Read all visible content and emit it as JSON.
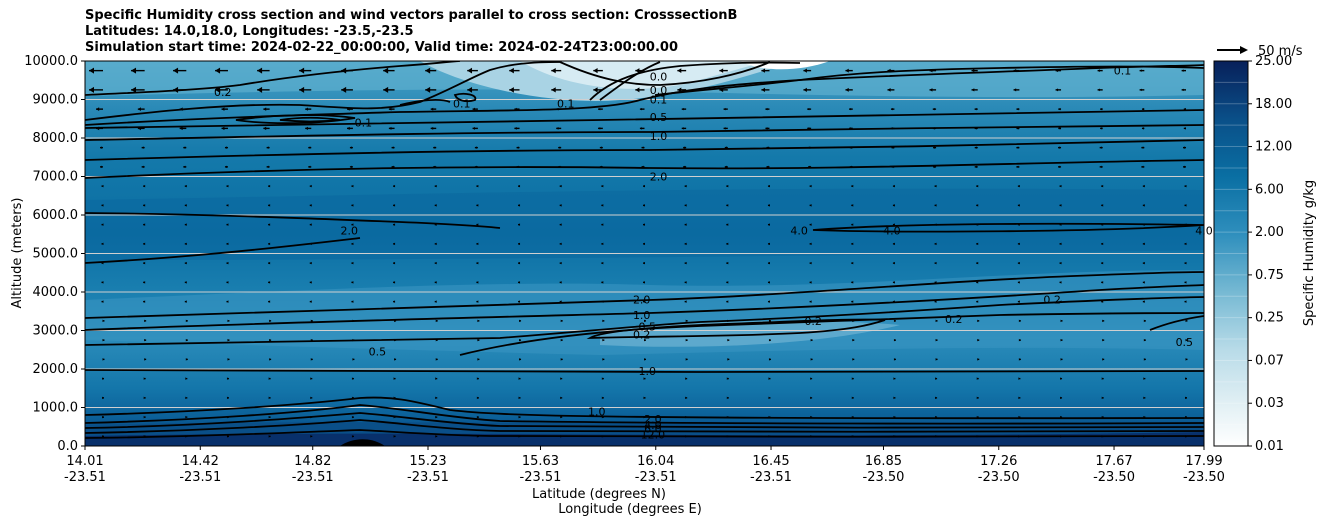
{
  "header": {
    "title_line1": "Specific Humidity cross section and wind vectors parallel to cross section: CrosssectionB",
    "title_line2": "Latitudes: 14.0,18.0, Longitudes: -23.5,-23.5",
    "title_line3": "Simulation start time: 2024-02-22_00:00:00, Valid time: 2024-02-24T23:00:00.00"
  },
  "colors": {
    "dark": "#08306b",
    "mid": "#0a6fa3",
    "light": "#3a96bd",
    "pale": "#8cc3d9",
    "white": "#ffffff",
    "contour": "#000000",
    "grid": "#d0d0d0"
  },
  "chart_data": {
    "type": "heatmap",
    "title": "Specific Humidity cross section and wind vectors parallel to cross section: CrosssectionB",
    "ylabel": "Altitude (meters)",
    "xlabel_line1": "Latitude (degrees N)",
    "xlabel_line2": "Longitude (degrees E)",
    "ylim": [
      0,
      10000
    ],
    "y_ticks": [
      "0.0",
      "1000.0",
      "2000.0",
      "3000.0",
      "4000.0",
      "5000.0",
      "6000.0",
      "7000.0",
      "8000.0",
      "9000.0",
      "10000.0"
    ],
    "x_ticks": [
      {
        "lat": "14.01",
        "lon": "-23.51"
      },
      {
        "lat": "14.42",
        "lon": "-23.51"
      },
      {
        "lat": "14.82",
        "lon": "-23.51"
      },
      {
        "lat": "15.23",
        "lon": "-23.51"
      },
      {
        "lat": "15.63",
        "lon": "-23.51"
      },
      {
        "lat": "16.04",
        "lon": "-23.51"
      },
      {
        "lat": "16.45",
        "lon": "-23.51"
      },
      {
        "lat": "16.85",
        "lon": "-23.50"
      },
      {
        "lat": "17.26",
        "lon": "-23.50"
      },
      {
        "lat": "17.67",
        "lon": "-23.50"
      },
      {
        "lat": "17.99",
        "lon": "-23.50"
      }
    ],
    "colorbar": {
      "label": "Specific Humidity g/kg",
      "tick_labels": [
        "0.01",
        "0.03",
        "0.07",
        "0.25",
        "0.75",
        "2.00",
        "6.00",
        "12.00",
        "18.00",
        "25.00"
      ]
    },
    "quiver_key": "50 m/s",
    "contour_labels": [
      {
        "text": "0.2",
        "lat": 14.5,
        "alt": 9200
      },
      {
        "text": "0.1",
        "lat": 15.0,
        "alt": 8400
      },
      {
        "text": "0.1",
        "lat": 15.35,
        "alt": 8900
      },
      {
        "text": "0.1",
        "lat": 15.72,
        "alt": 8900
      },
      {
        "text": "0.0",
        "lat": 16.05,
        "alt": 9600
      },
      {
        "text": "0.0",
        "lat": 16.05,
        "alt": 9250
      },
      {
        "text": "0.1",
        "lat": 16.05,
        "alt": 9000
      },
      {
        "text": "0.5",
        "lat": 16.05,
        "alt": 8550
      },
      {
        "text": "1.0",
        "lat": 16.05,
        "alt": 8050
      },
      {
        "text": "2.0",
        "lat": 16.05,
        "alt": 7000
      },
      {
        "text": "0.1",
        "lat": 17.7,
        "alt": 9750
      },
      {
        "text": "2.0",
        "lat": 14.95,
        "alt": 5600
      },
      {
        "text": "4.0",
        "lat": 16.55,
        "alt": 5600
      },
      {
        "text": "4.0",
        "lat": 16.88,
        "alt": 5600
      },
      {
        "text": "4.0",
        "lat": 17.99,
        "alt": 5600
      },
      {
        "text": "2.0",
        "lat": 15.99,
        "alt": 3800
      },
      {
        "text": "1.0",
        "lat": 15.99,
        "alt": 3400
      },
      {
        "text": "0.5",
        "lat": 16.01,
        "alt": 3100
      },
      {
        "text": "0.2",
        "lat": 15.99,
        "alt": 2900
      },
      {
        "text": "0.2",
        "lat": 16.6,
        "alt": 3250
      },
      {
        "text": "0.2",
        "lat": 17.1,
        "alt": 3300
      },
      {
        "text": "0.2",
        "lat": 17.45,
        "alt": 3800
      },
      {
        "text": "0.5",
        "lat": 15.05,
        "alt": 2450
      },
      {
        "text": "0.5",
        "lat": 17.92,
        "alt": 2700
      },
      {
        "text": "1.0",
        "lat": 16.01,
        "alt": 1950
      },
      {
        "text": "1.0",
        "lat": 15.83,
        "alt": 900
      },
      {
        "text": "2.0",
        "lat": 16.03,
        "alt": 700
      },
      {
        "text": "4.0",
        "lat": 16.03,
        "alt": 550
      },
      {
        "text": "6.0",
        "lat": 16.03,
        "alt": 450
      },
      {
        "text": "12.0",
        "lat": 16.03,
        "alt": 300
      }
    ]
  }
}
